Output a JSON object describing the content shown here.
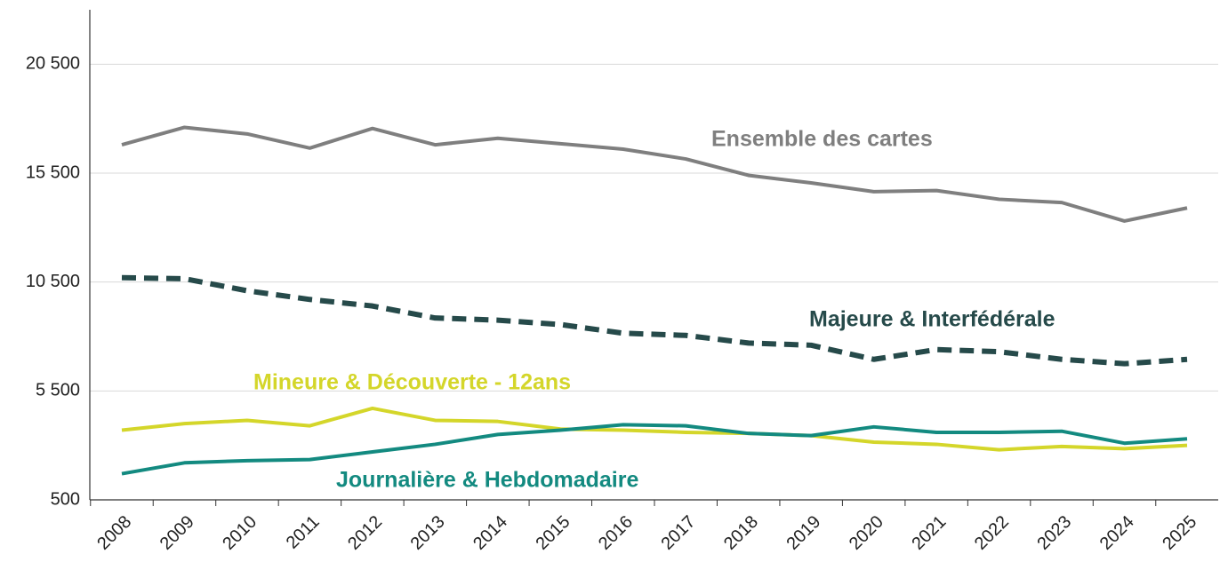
{
  "chart_data": {
    "type": "line",
    "categories": [
      "2008",
      "2009",
      "2010",
      "2011",
      "2012",
      "2013",
      "2014",
      "2015",
      "2016",
      "2017",
      "2018",
      "2019",
      "2020",
      "2021",
      "2022",
      "2023",
      "2024",
      "2025"
    ],
    "ylim": [
      500,
      23000
    ],
    "yticks": [
      500,
      {
        "value": 5500,
        "label": "5 500"
      },
      {
        "value": 10500,
        "label": "10 500"
      },
      {
        "value": 15500,
        "label": "15 500"
      },
      {
        "value": 20500,
        "label": "20 500"
      }
    ],
    "grid": true,
    "series": [
      {
        "name": "Ensemble des cartes",
        "color": "#7f7f7f",
        "style": "solid",
        "values": [
          16800,
          17600,
          17300,
          16650,
          17550,
          16800,
          17100,
          16850,
          16600,
          16150,
          15400,
          15050,
          14650,
          14700,
          14300,
          14150,
          13300,
          13900
        ]
      },
      {
        "name": "Majeure & Interfédérale",
        "color": "#264a4a",
        "style": "dashed",
        "values": [
          10700,
          10650,
          10100,
          9700,
          9400,
          8850,
          8750,
          8550,
          8150,
          8050,
          7700,
          7600,
          6950,
          7400,
          7300,
          6950,
          6750,
          6950
        ]
      },
      {
        "name": "Mineure & Découverte - 12ans",
        "color": "#d4d62a",
        "style": "solid",
        "values": [
          3700,
          4000,
          4150,
          3900,
          4700,
          4150,
          4100,
          3750,
          3700,
          3600,
          3550,
          3450,
          3150,
          3050,
          2800,
          2950,
          2850,
          3000
        ]
      },
      {
        "name": "Journalière & Hebdomadaire",
        "color": "#138a80",
        "style": "solid",
        "values": [
          1700,
          2200,
          2300,
          2350,
          2700,
          3050,
          3500,
          3700,
          3950,
          3900,
          3550,
          3450,
          3850,
          3600,
          3600,
          3650,
          3100,
          3300
        ]
      }
    ]
  }
}
